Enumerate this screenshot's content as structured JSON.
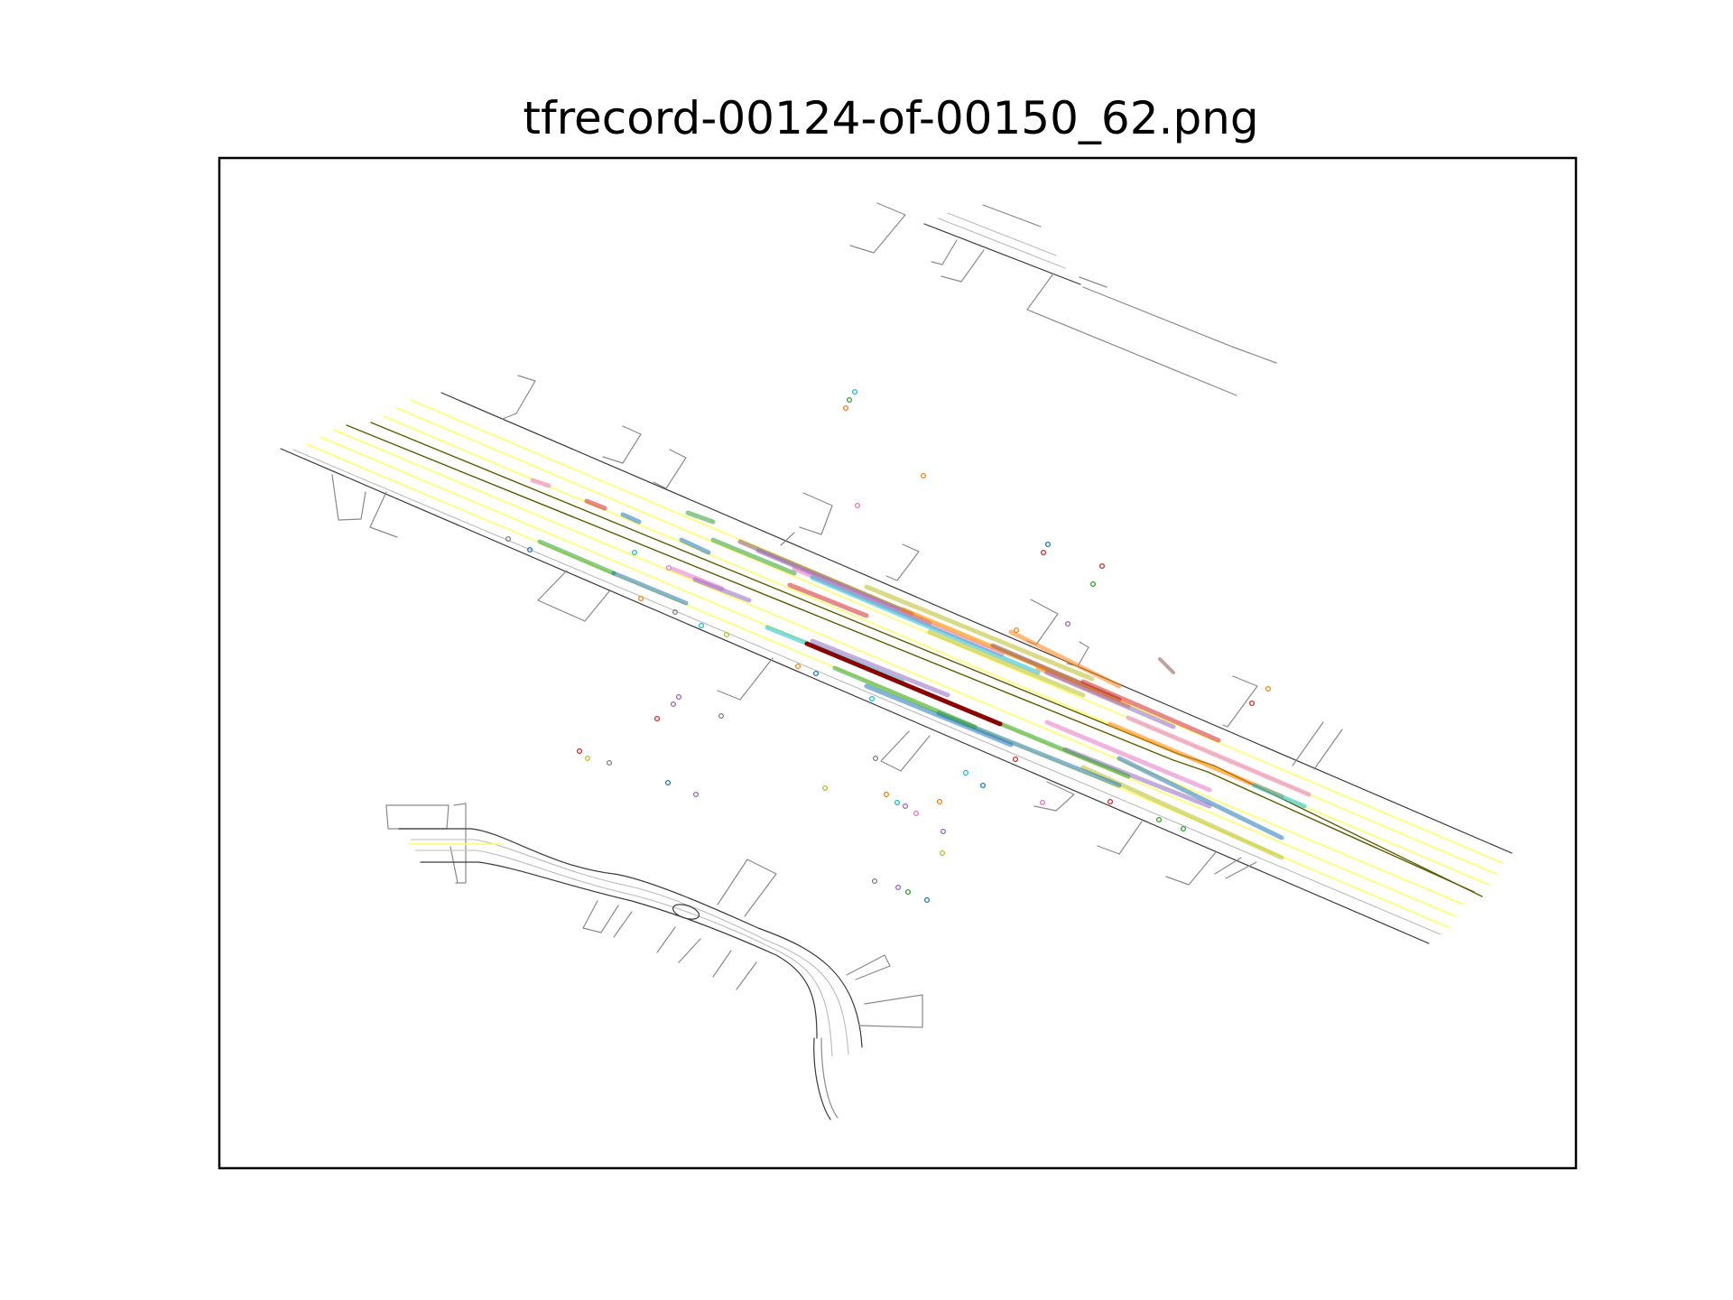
{
  "title": "tfrecord-00124-of-00150_62.png",
  "colors": {
    "road_edge": "#3a3a3a",
    "road_boundary": "#8a8a8a",
    "center_line": "#5c5c00",
    "lane_marking": "#ffff66",
    "ego_trajectory": "#8b0000"
  },
  "agent_palette": [
    "#1f77b4",
    "#ff7f0e",
    "#2ca02c",
    "#d62728",
    "#9467bd",
    "#8c564b",
    "#e377c2",
    "#7f7f7f",
    "#bcbd22",
    "#17becf"
  ]
}
